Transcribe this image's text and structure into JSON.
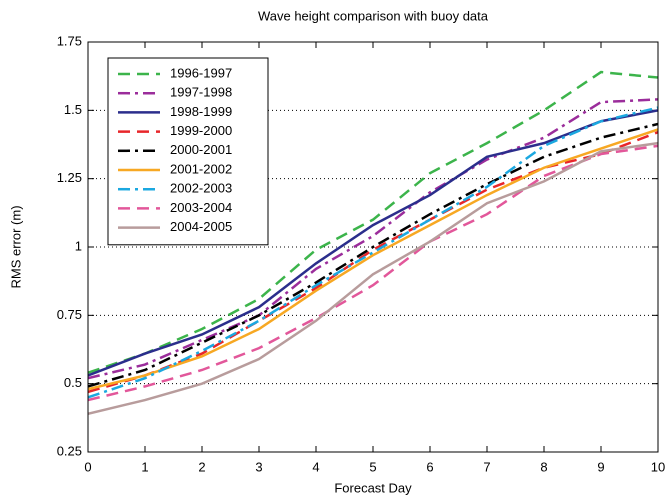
{
  "chart_data": {
    "type": "line",
    "title": "Wave height comparison with buoy data",
    "x_label": "Forecast Day",
    "y_label": "RMS error (m)",
    "x": [
      0,
      1,
      2,
      3,
      4,
      5,
      6,
      7,
      8,
      9,
      10
    ],
    "xlim": [
      0,
      10
    ],
    "xticks": [
      0,
      1,
      2,
      3,
      4,
      5,
      6,
      7,
      8,
      9,
      10
    ],
    "ylim": [
      0.25,
      1.75
    ],
    "yticks": [
      0.25,
      0.5,
      0.75,
      1,
      1.25,
      1.5,
      1.75
    ],
    "grid": true,
    "legend": "upper left",
    "series": [
      {
        "name": "1996-1997",
        "color": "#3cb44b",
        "dash": "dashed",
        "values": [
          0.54,
          0.61,
          0.7,
          0.81,
          0.99,
          1.1,
          1.27,
          1.38,
          1.5,
          1.64,
          1.62
        ]
      },
      {
        "name": "1997-1998",
        "color": "#9b2d9b",
        "dash": "dashdot",
        "values": [
          0.52,
          0.57,
          0.66,
          0.75,
          0.92,
          1.04,
          1.2,
          1.32,
          1.4,
          1.53,
          1.54
        ]
      },
      {
        "name": "1998-1999",
        "color": "#2b2e8c",
        "dash": "solid",
        "values": [
          0.53,
          0.61,
          0.68,
          0.78,
          0.94,
          1.08,
          1.19,
          1.33,
          1.38,
          1.46,
          1.5
        ]
      },
      {
        "name": "1999-2000",
        "color": "#e8262a",
        "dash": "dashed",
        "values": [
          0.47,
          0.53,
          0.61,
          0.73,
          0.85,
          0.99,
          1.1,
          1.21,
          1.29,
          1.34,
          1.42
        ]
      },
      {
        "name": "2000-2001",
        "color": "#000000",
        "dash": "dashdot",
        "values": [
          0.49,
          0.55,
          0.65,
          0.75,
          0.87,
          1.0,
          1.12,
          1.23,
          1.33,
          1.4,
          1.45
        ]
      },
      {
        "name": "2001-2002",
        "color": "#f7a823",
        "dash": "solid",
        "values": [
          0.48,
          0.53,
          0.6,
          0.7,
          0.84,
          0.97,
          1.08,
          1.19,
          1.29,
          1.36,
          1.43
        ]
      },
      {
        "name": "2002-2003",
        "color": "#1ba8e0",
        "dash": "dashdot",
        "values": [
          0.45,
          0.52,
          0.62,
          0.73,
          0.86,
          0.98,
          1.1,
          1.22,
          1.37,
          1.46,
          1.51
        ]
      },
      {
        "name": "2003-2004",
        "color": "#e2579a",
        "dash": "dashed",
        "values": [
          0.44,
          0.49,
          0.55,
          0.63,
          0.74,
          0.86,
          1.02,
          1.12,
          1.26,
          1.34,
          1.37
        ]
      },
      {
        "name": "2004-2005",
        "color": "#b89c9c",
        "dash": "solid",
        "values": [
          0.39,
          0.44,
          0.5,
          0.59,
          0.73,
          0.9,
          1.02,
          1.16,
          1.24,
          1.35,
          1.38
        ]
      }
    ]
  }
}
